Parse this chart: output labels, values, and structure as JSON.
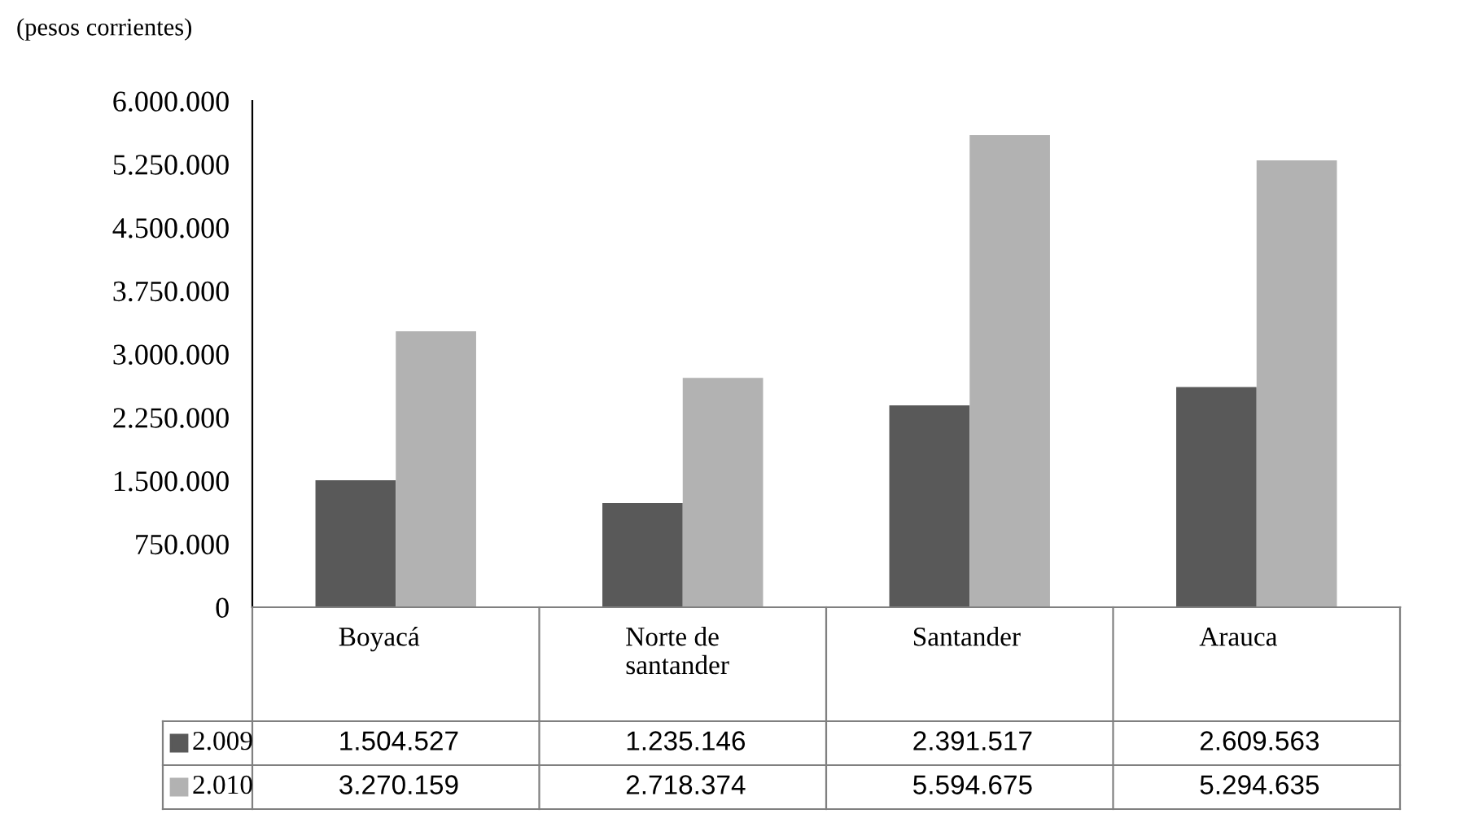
{
  "chart_data": {
    "type": "bar",
    "ylabel": "(pesos corrientes)",
    "categories": [
      "Boyacá",
      "Norte de\nsantander",
      "Santander",
      "Arauca"
    ],
    "series": [
      {
        "name": "2.009",
        "color": "#595959",
        "values": [
          1504527,
          1235146,
          2391517,
          2609563
        ],
        "value_labels": [
          "1.504.527",
          "1.235.146",
          "2.391.517",
          "2.609.563"
        ]
      },
      {
        "name": "2.010",
        "color": "#b2b2b2",
        "values": [
          3270159,
          2718374,
          5594675,
          5294635
        ],
        "value_labels": [
          "3.270.159",
          "2.718.374",
          "5.594.675",
          "5.294.635"
        ]
      }
    ],
    "ylim": [
      0,
      6000000
    ],
    "yticks": [
      {
        "value": 0,
        "label": "0"
      },
      {
        "value": 750000,
        "label": "750.000"
      },
      {
        "value": 1500000,
        "label": "1.500.000"
      },
      {
        "value": 2250000,
        "label": "2.250.000"
      },
      {
        "value": 3000000,
        "label": "3.000.000"
      },
      {
        "value": 3750000,
        "label": "3.750.000"
      },
      {
        "value": 4500000,
        "label": "4.500.000"
      },
      {
        "value": 5250000,
        "label": "5.250.000"
      },
      {
        "value": 6000000,
        "label": "6.000.000"
      }
    ],
    "grid": false,
    "legend": "bottom left"
  }
}
